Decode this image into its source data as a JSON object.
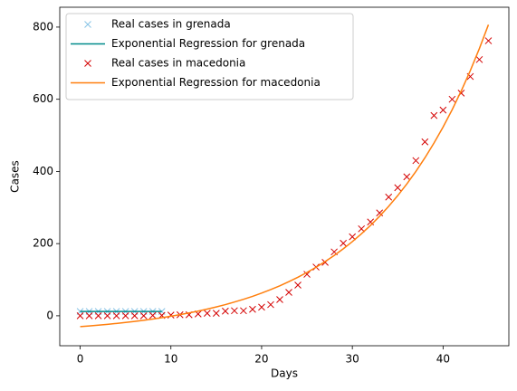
{
  "chart_data": {
    "type": "line",
    "xlabel": "Days",
    "ylabel": "Cases",
    "xlim": [
      -2.25,
      47.25
    ],
    "ylim": [
      -83,
      855
    ],
    "xticks": [
      0,
      10,
      20,
      30,
      40
    ],
    "yticks": [
      0,
      200,
      400,
      600,
      800
    ],
    "legend": "upper left",
    "series": [
      {
        "name": "Real cases in grenada",
        "color": "#87c3e6",
        "style": "marker",
        "x": [
          0,
          1,
          2,
          3,
          4,
          5,
          6,
          7,
          8,
          9
        ],
        "values": [
          12,
          12,
          12,
          12,
          12,
          12,
          12,
          12,
          12,
          12
        ]
      },
      {
        "name": "Exponential Regression for grenada",
        "color": "#008b8b",
        "style": "line",
        "x": [
          0,
          1,
          2,
          3,
          4,
          5,
          6,
          7,
          8,
          9
        ],
        "values": [
          12,
          12,
          12,
          12,
          12,
          12,
          12,
          12,
          12,
          12
        ]
      },
      {
        "name": "Real cases in macedonia",
        "color": "#d40000",
        "style": "marker",
        "x": [
          0,
          1,
          2,
          3,
          4,
          5,
          6,
          7,
          8,
          9,
          10,
          11,
          12,
          13,
          14,
          15,
          16,
          17,
          18,
          19,
          20,
          21,
          22,
          23,
          24,
          25,
          26,
          27,
          28,
          29,
          30,
          31,
          32,
          33,
          34,
          35,
          36,
          37,
          38,
          39,
          40,
          41,
          42,
          43,
          44,
          45
        ],
        "values": [
          0,
          0,
          0,
          0,
          0,
          0,
          0,
          0,
          1,
          1,
          2,
          3,
          3,
          5,
          7,
          7,
          13,
          14,
          14,
          18,
          24,
          31,
          45,
          65,
          85,
          115,
          135,
          148,
          177,
          201,
          219,
          241,
          260,
          285,
          329,
          355,
          385,
          430,
          482,
          555,
          570,
          600,
          617,
          663,
          710,
          762
        ]
      },
      {
        "name": "Exponential Regression for macedonia",
        "color": "#ff7f0e",
        "style": "line",
        "x": [
          0,
          1,
          2,
          3,
          4,
          5,
          6,
          7,
          8,
          9,
          10,
          11,
          12,
          13,
          14,
          15,
          16,
          17,
          18,
          19,
          20,
          21,
          22,
          23,
          24,
          25,
          26,
          27,
          28,
          29,
          30,
          31,
          32,
          33,
          34,
          35,
          36,
          37,
          38,
          39,
          40,
          41,
          42,
          43,
          44,
          45
        ],
        "values": [
          -30,
          -28,
          -25.9,
          -23.6,
          -21.1,
          -18.4,
          -15.5,
          -12.4,
          -8.9,
          -5.2,
          -1.2,
          3.2,
          7.9,
          13,
          18.5,
          24.5,
          31,
          38.1,
          45.7,
          53.9,
          62.9,
          72.6,
          83.1,
          94.5,
          106.8,
          120.1,
          134.6,
          150.3,
          167.2,
          185.6,
          205.5,
          227.1,
          250.5,
          275.8,
          303.2,
          332.9,
          365.1,
          400,
          437.8,
          478.7,
          523,
          571,
          623,
          679.4,
          740.4,
          806.6
        ]
      }
    ]
  }
}
